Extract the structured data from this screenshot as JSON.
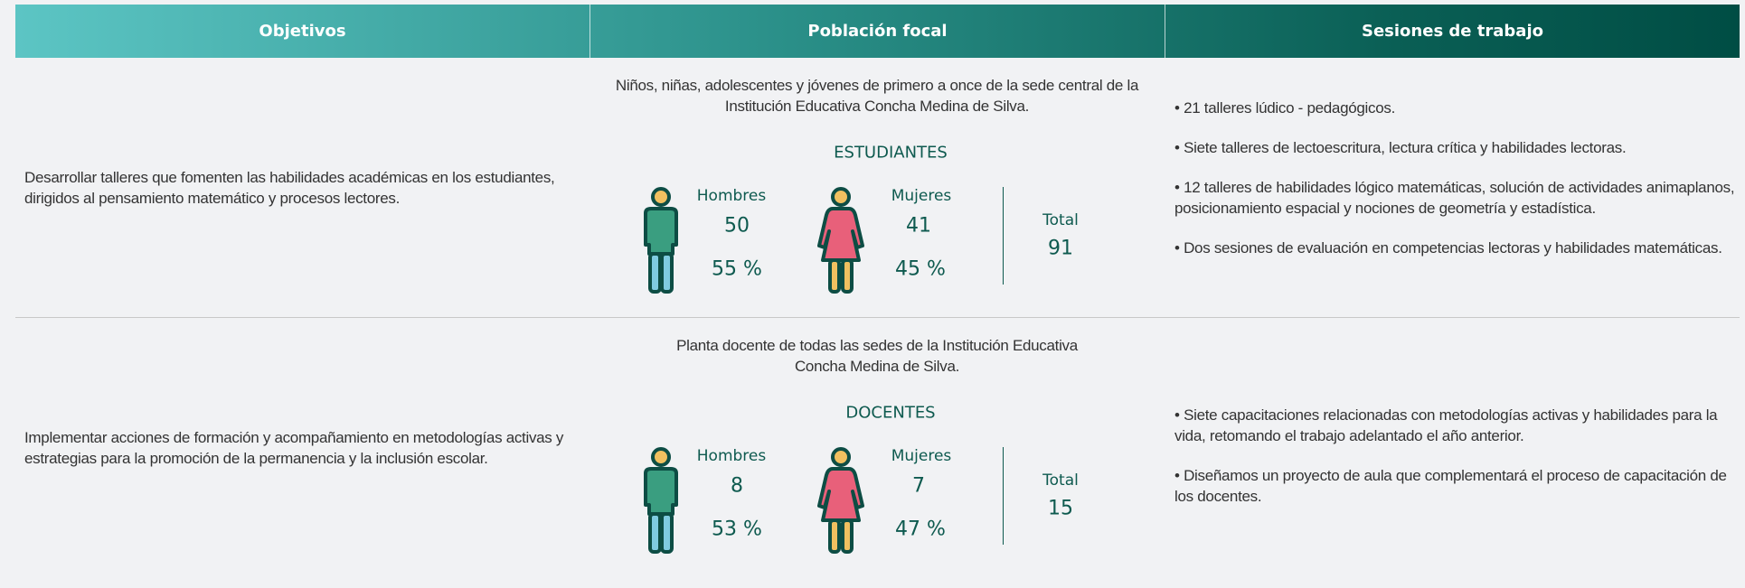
{
  "table": {
    "headers": [
      "Objetivos",
      "Población focal",
      "Sesiones de trabajo"
    ],
    "rows": [
      {
        "objective": "Desarrollar talleres que fomenten las habilidades académicas en los estudiantes, dirigidos al pensamiento matemático y procesos lectores.",
        "population": [
          "Niños, niñas, adolescentes y jóvenes de primero a once de la sede central de la",
          "Institución Educativa Concha Medina de Silva."
        ],
        "group": "ESTUDIANTES",
        "men_label": "Hombres",
        "men": 50,
        "men_pct": "55 %",
        "women_label": "Mujeres",
        "women": 41,
        "women_pct": "45 %",
        "total_label": "Total",
        "total": 91,
        "sessions": [
          "• 21 talleres lúdico - pedagógicos.",
          "• Siete talleres de lectoescritura, lectura crítica y habilidades lectoras.",
          "• 12 talleres de habilidades lógico matemáticas, solución de actividades animaplanos, posicionamiento espacial y nociones de geometría y estadística.",
          "• Dos sesiones de evaluación en competencias lectoras y habilidades matemáticas."
        ]
      },
      {
        "objective": "Implementar acciones de formación y acompañamiento en metodologías activas y estrategias para la promoción de la permanencia y la inclusión escolar.",
        "population": [
          "Planta docente de todas las sedes de la Institución Educativa",
          "Concha Medina de Silva."
        ],
        "group": "DOCENTES",
        "men_label": "Hombres",
        "men": 8,
        "men_pct": "53 %",
        "women_label": "Mujeres",
        "women": 7,
        "women_pct": "47 %",
        "total_label": "Total",
        "total": 15,
        "sessions": [
          "• Siete capacitaciones relacionadas con metodologías activas y habilidades para la vida, retomando el trabajo adelantado el año anterior.",
          "• Diseñamos un proyecto de aula que complementará el proceso de capacitación de los docentes."
        ]
      }
    ]
  }
}
